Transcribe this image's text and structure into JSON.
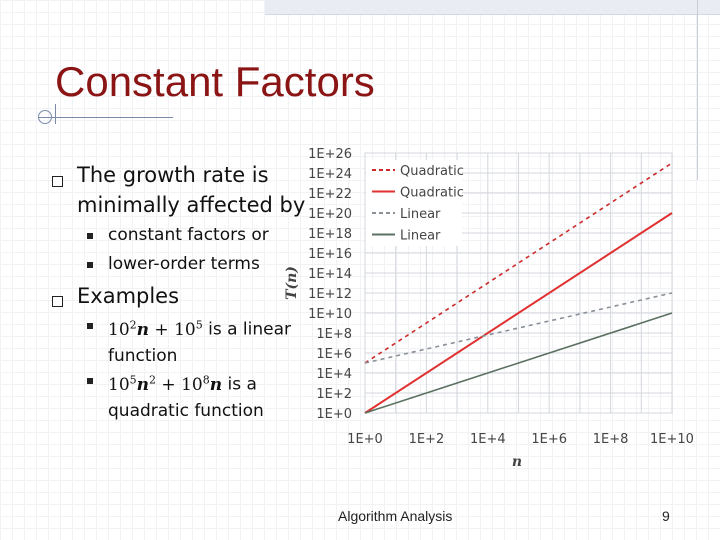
{
  "slide": {
    "title": "Constant Factors",
    "bullets": [
      {
        "text": "The growth rate is minimally affected by",
        "sub": [
          "constant factors or",
          "lower-order terms"
        ]
      },
      {
        "text": "Examples",
        "sub": [
          {
            "math": [
              "10",
              "2",
              "n",
              " + 10",
              "5"
            ],
            "text": " is a linear function"
          },
          {
            "math": [
              "10",
              "5",
              "n",
              "2",
              " + 10",
              "8",
              "n"
            ],
            "text": " is a quadratic function"
          }
        ]
      }
    ],
    "footer": "Algorithm Analysis",
    "page_number": "9"
  },
  "chart_data": {
    "type": "line",
    "x_axis": {
      "label": "n",
      "scale": "log10",
      "ticks": [
        "1E+0",
        "1E+2",
        "1E+4",
        "1E+6",
        "1E+8",
        "1E+10"
      ],
      "range": [
        1,
        10000000000
      ]
    },
    "y_axis": {
      "label": "T(n)",
      "scale": "log10",
      "ticks": [
        "1E+0",
        "1E+2",
        "1E+4",
        "1E+6",
        "1E+8",
        "1E+10",
        "1E+12",
        "1E+14",
        "1E+16",
        "1E+18",
        "1E+20",
        "1E+22",
        "1E+24",
        "1E+26"
      ],
      "range": [
        1,
        1e+26
      ]
    },
    "grid": true,
    "legend_placement": "top-left",
    "series": [
      {
        "name": "Quadratic",
        "style": "dashed",
        "color": "#cc2a2a",
        "x_log": [
          0,
          10
        ],
        "y_log": [
          5,
          25
        ]
      },
      {
        "name": "Quadratic",
        "style": "solid",
        "color": "#e03030",
        "x_log": [
          0,
          10
        ],
        "y_log": [
          0,
          20
        ]
      },
      {
        "name": "Linear",
        "style": "dashed",
        "color": "#8a9098",
        "x_log": [
          0,
          10
        ],
        "y_log": [
          5,
          12
        ]
      },
      {
        "name": "Linear",
        "style": "solid",
        "color": "#5a7060",
        "x_log": [
          0,
          10
        ],
        "y_log": [
          0,
          10
        ]
      }
    ]
  }
}
